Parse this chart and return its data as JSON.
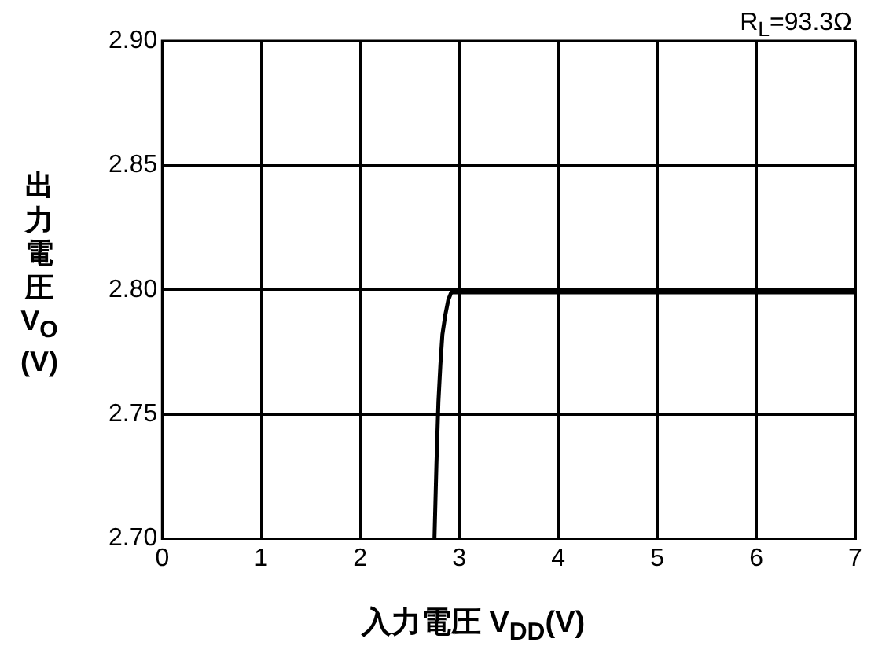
{
  "chart_data": {
    "type": "line",
    "xlabel": "入力電圧 V$_{DD}$(V)",
    "ylabel": "出力電圧 V$_{O}$(V)",
    "annotations": [
      "R$_{L}$=93.3Ω"
    ],
    "series": [
      {
        "color": "#000000",
        "x": [
          2.75,
          2.77,
          2.79,
          2.81,
          2.83,
          2.86,
          2.89,
          2.92,
          2.96,
          3.0,
          4,
          5,
          6,
          7
        ],
        "values": [
          2.7,
          2.73,
          2.755,
          2.77,
          2.782,
          2.79,
          2.796,
          2.799,
          2.799,
          2.799,
          2.799,
          2.799,
          2.799,
          2.799
        ]
      }
    ],
    "xlim": [
      0,
      7
    ],
    "xticks": [
      0,
      1,
      2,
      3,
      4,
      5,
      6,
      7
    ],
    "ylim": [
      2.7,
      2.9
    ],
    "yticks": [
      {
        "value": 2.7,
        "label": "2.70"
      },
      {
        "value": 2.75,
        "label": "2.75"
      },
      {
        "value": 2.8,
        "label": "2.80"
      },
      {
        "value": 2.85,
        "label": "2.85"
      },
      {
        "value": 2.9,
        "label": "2.90"
      }
    ],
    "grid": true,
    "legend": false,
    "marker": "none",
    "line_style": "solid"
  }
}
